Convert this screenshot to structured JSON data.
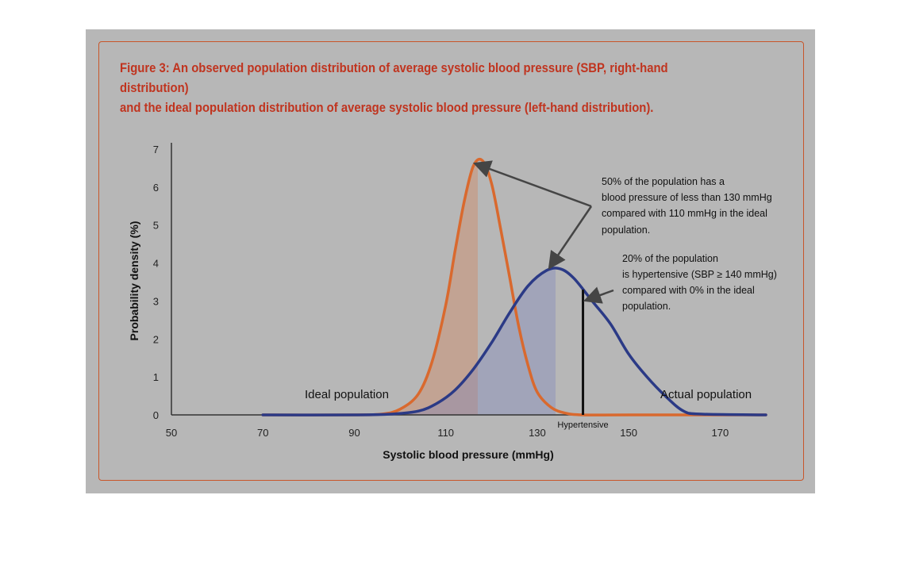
{
  "caption": {
    "line1": "Figure 3: An observed population distribution of average systolic blood pressure (SBP, right-hand distribution)",
    "line2": "and the ideal population distribution of average systolic blood pressure (left-hand distribution)."
  },
  "chart_data": {
    "type": "line",
    "xlabel": "Systolic blood pressure (mmHg)",
    "ylabel": "Probability density (%)",
    "xlim": [
      50,
      180
    ],
    "ylim": [
      0,
      7
    ],
    "x_ticks": [
      "50",
      "70",
      "90",
      "110",
      "130",
      "150",
      "170"
    ],
    "y_ticks": [
      "0",
      "1",
      "2",
      "3",
      "4",
      "5",
      "6",
      "7"
    ],
    "grid": false,
    "series": [
      {
        "name": "Ideal population",
        "color": "#d9692e",
        "x": [
          70,
          90,
          96,
          100,
          104,
          107,
          110,
          112,
          114,
          116,
          118,
          120,
          122,
          124,
          126,
          128,
          130,
          133,
          136,
          140,
          150,
          180
        ],
        "y": [
          0,
          0,
          0.02,
          0.15,
          0.55,
          1.4,
          2.9,
          4.3,
          5.6,
          6.55,
          6.7,
          6.1,
          4.9,
          3.6,
          2.3,
          1.3,
          0.6,
          0.2,
          0.05,
          0,
          0,
          0
        ],
        "shade_to_x": 117
      },
      {
        "name": "Actual population",
        "color": "#2b3a86",
        "x": [
          70,
          90,
          98,
          104,
          108,
          112,
          116,
          120,
          124,
          128,
          132,
          135,
          138,
          142,
          146,
          150,
          154,
          158,
          162,
          166,
          180
        ],
        "y": [
          0,
          0,
          0.02,
          0.1,
          0.3,
          0.65,
          1.2,
          1.9,
          2.7,
          3.4,
          3.8,
          3.85,
          3.6,
          3.0,
          2.4,
          1.6,
          1.0,
          0.5,
          0.1,
          0.02,
          0
        ],
        "shade_to_x": 134
      }
    ],
    "vertical_marker": {
      "x": 140,
      "label": "Hypertensive"
    },
    "annotations": [
      {
        "lines": [
          "50% of the population has a",
          "blood pressure of less than 130 mmHg",
          "compared with 110 mmHg in the ideal",
          "population."
        ]
      },
      {
        "lines": [
          "20% of the population",
          "is hypertensive (SBP  ≥ 140 mmHg)",
          "compared with 0% in the ideal",
          "population."
        ]
      }
    ]
  }
}
